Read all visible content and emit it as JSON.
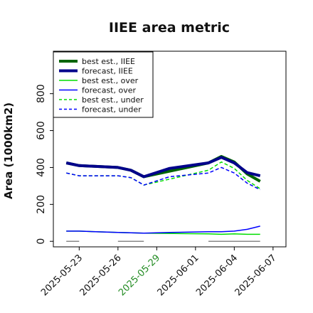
{
  "chart_data": {
    "type": "line",
    "title": "IIEE area metric",
    "xlabel": "",
    "ylabel": "Area (1000km2)",
    "ylim": [
      -30,
      1030
    ],
    "yticks": [
      0,
      200,
      400,
      600,
      800
    ],
    "xlim": [
      "2025-05-21",
      "2025-06-08"
    ],
    "xticks": [
      "2025-05-23",
      "2025-05-26",
      "2025-05-29",
      "2025-06-01",
      "2025-06-04",
      "2025-06-07"
    ],
    "highlight_tick": "2025-05-29",
    "highlight_color": "#228b22",
    "grid": false,
    "legend_position": "top-left",
    "series": [
      {
        "name": "best est., IIEE",
        "color": "#006400",
        "style": "solid",
        "width": 4,
        "x": [
          "2025-05-22",
          "2025-05-23",
          "2025-05-26",
          "2025-05-27",
          "2025-05-28",
          "2025-06-02",
          "2025-06-03",
          "2025-06-04",
          "2025-06-05",
          "2025-06-06"
        ],
        "y": [
          425,
          410,
          400,
          385,
          350,
          425,
          460,
          430,
          365,
          325
        ]
      },
      {
        "name": "forecast, IIEE",
        "color": "#00008b",
        "style": "solid",
        "width": 4,
        "x": [
          "2025-05-22",
          "2025-05-23",
          "2025-05-26",
          "2025-05-27",
          "2025-05-28",
          "2025-05-30",
          "2025-06-02",
          "2025-06-03",
          "2025-06-04",
          "2025-06-05",
          "2025-06-06"
        ],
        "y": [
          425,
          410,
          400,
          385,
          350,
          395,
          425,
          455,
          425,
          372,
          355
        ]
      },
      {
        "name": "best est., over",
        "color": "#00dd00",
        "style": "solid",
        "width": 1.5,
        "x": [
          "2025-05-22",
          "2025-05-23",
          "2025-05-26",
          "2025-05-27",
          "2025-05-28",
          "2025-06-02",
          "2025-06-03",
          "2025-06-04",
          "2025-06-05",
          "2025-06-06"
        ],
        "y": [
          55,
          55,
          48,
          46,
          44,
          40,
          38,
          40,
          38,
          38
        ]
      },
      {
        "name": "forecast, over",
        "color": "#0000ff",
        "style": "solid",
        "width": 1.5,
        "x": [
          "2025-05-22",
          "2025-05-23",
          "2025-05-26",
          "2025-05-27",
          "2025-05-28",
          "2025-05-30",
          "2025-06-02",
          "2025-06-03",
          "2025-06-04",
          "2025-06-05",
          "2025-06-06"
        ],
        "y": [
          55,
          55,
          48,
          46,
          44,
          48,
          52,
          52,
          55,
          65,
          82
        ]
      },
      {
        "name": "best est., under",
        "color": "#00dd00",
        "style": "dashed",
        "width": 1.5,
        "x": [
          "2025-05-22",
          "2025-05-23",
          "2025-05-26",
          "2025-05-27",
          "2025-05-28",
          "2025-06-02",
          "2025-06-03",
          "2025-06-04",
          "2025-06-05",
          "2025-06-06"
        ],
        "y": [
          370,
          355,
          355,
          345,
          305,
          385,
          430,
          395,
          330,
          285
        ]
      },
      {
        "name": "forecast, under",
        "color": "#0000ff",
        "style": "dashed",
        "width": 1.5,
        "x": [
          "2025-05-22",
          "2025-05-23",
          "2025-05-26",
          "2025-05-27",
          "2025-05-28",
          "2025-05-30",
          "2025-06-02",
          "2025-06-03",
          "2025-06-04",
          "2025-06-05",
          "2025-06-06"
        ],
        "y": [
          370,
          355,
          355,
          345,
          305,
          350,
          370,
          400,
          370,
          315,
          280
        ]
      },
      {
        "name": "",
        "color": "#888888",
        "style": "solid",
        "width": 1.5,
        "x": [
          "2025-05-22",
          "2025-05-23"
        ],
        "y": [
          0,
          0
        ]
      },
      {
        "name": "",
        "color": "#888888",
        "style": "solid",
        "width": 1.5,
        "x": [
          "2025-05-26",
          "2025-05-28"
        ],
        "y": [
          0,
          0
        ]
      },
      {
        "name": "",
        "color": "#888888",
        "style": "solid",
        "width": 1.5,
        "x": [
          "2025-06-02",
          "2025-06-06"
        ],
        "y": [
          0,
          0
        ]
      }
    ]
  }
}
